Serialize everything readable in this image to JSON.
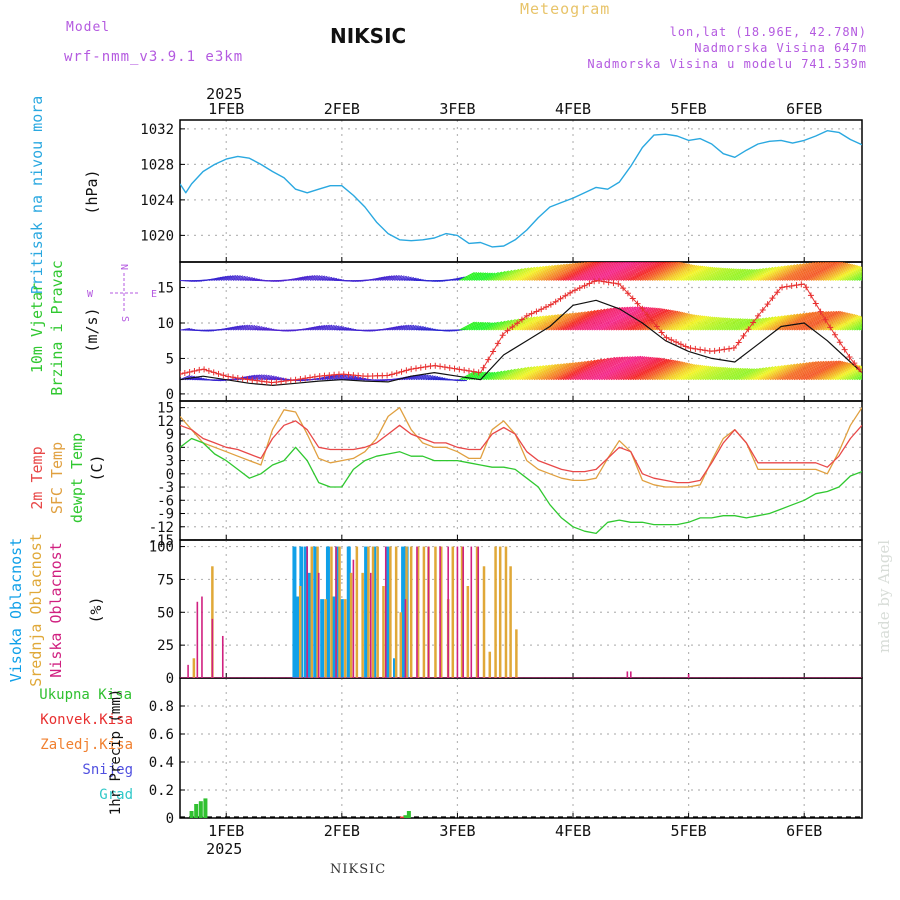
{
  "header": {
    "model_label": "Model",
    "model_name": "wrf-nmm_v3.9.1  e3km",
    "station": "NIKSIC",
    "product": "Meteogram",
    "coords": "lon,lat (18.96E, 42.78N)",
    "elevation": "Nadmorska Visina 647m",
    "model_elevation": "Nadmorska Visina u modelu 741.539m"
  },
  "footer": {
    "station": "NIKSIC",
    "credit": "made by Angel"
  },
  "colors": {
    "pressure": "#2aa8e0",
    "temp2m": "#e84848",
    "sfc": "#e0a040",
    "dew": "#30c830",
    "high": "#10a0e8",
    "mid": "#e0a838",
    "low": "#d02080",
    "rain": "#30c030",
    "conv": "#e83030",
    "frz": "#f08030",
    "snow": "#5050e0",
    "hail": "#30c8c8",
    "grid": "#b8b8b8",
    "gold": "#e8c46a",
    "violet": "#b45ae0"
  },
  "chart_data": [
    {
      "type": "line",
      "id": "pressure",
      "ylabel_lines": [
        "Pritisak na nivou mora",
        "(hPa)"
      ],
      "unit": "(hPa)",
      "title": "Pritisak na nivou mora",
      "x_range_days": [
        0.6,
        6.5
      ],
      "ylim": [
        1017,
        1033
      ],
      "yticks": [
        1020,
        1024,
        1028,
        1032
      ],
      "series": [
        {
          "name": "pressure",
          "x": [
            0.6,
            0.65,
            0.7,
            0.8,
            0.9,
            1.0,
            1.1,
            1.2,
            1.3,
            1.4,
            1.5,
            1.6,
            1.7,
            1.8,
            1.9,
            2.0,
            2.1,
            2.2,
            2.3,
            2.4,
            2.5,
            2.6,
            2.7,
            2.8,
            2.9,
            3.0,
            3.1,
            3.2,
            3.3,
            3.4,
            3.5,
            3.6,
            3.7,
            3.8,
            3.9,
            4.0,
            4.1,
            4.2,
            4.3,
            4.4,
            4.5,
            4.6,
            4.7,
            4.8,
            4.9,
            5.0,
            5.1,
            5.2,
            5.3,
            5.4,
            5.5,
            5.6,
            5.7,
            5.8,
            5.9,
            6.0,
            6.1,
            6.2,
            6.3,
            6.4,
            6.5
          ],
          "values": [
            1025.8,
            1024.8,
            1025.8,
            1027.2,
            1028.0,
            1028.6,
            1028.9,
            1028.7,
            1028.0,
            1027.2,
            1026.5,
            1025.2,
            1024.8,
            1025.2,
            1025.6,
            1025.6,
            1024.5,
            1023.2,
            1021.5,
            1020.2,
            1019.5,
            1019.4,
            1019.5,
            1019.7,
            1020.2,
            1020.0,
            1019.1,
            1019.2,
            1018.7,
            1018.8,
            1019.5,
            1020.6,
            1022.0,
            1023.2,
            1023.7,
            1024.2,
            1024.8,
            1025.4,
            1025.2,
            1026.0,
            1027.8,
            1029.9,
            1031.3,
            1031.4,
            1031.2,
            1030.7,
            1030.9,
            1030.3,
            1029.2,
            1028.8,
            1029.6,
            1030.3,
            1030.6,
            1030.7,
            1030.4,
            1030.7,
            1031.2,
            1031.8,
            1031.6,
            1030.8,
            1030.2
          ]
        }
      ]
    },
    {
      "type": "line",
      "id": "wind",
      "ylabel_lines": [
        "10m Vjetar",
        "Brzina i Pravac",
        "(m/s)"
      ],
      "compass": [
        "N",
        "W",
        "E",
        "S"
      ],
      "x_range_days": [
        0.6,
        6.5
      ],
      "ylim": [
        -1,
        18.6
      ],
      "yticks": [
        0,
        5,
        10,
        15
      ],
      "note": "three direction-stripe bands (vectors rendered at ~2, 9, 16 m/s) plus speed (black) and gust (red)",
      "series": [
        {
          "name": "speed",
          "x": [
            0.6,
            0.8,
            1.0,
            1.2,
            1.4,
            1.6,
            1.8,
            2.0,
            2.2,
            2.4,
            2.6,
            2.8,
            3.0,
            3.2,
            3.4,
            3.6,
            3.8,
            4.0,
            4.2,
            4.4,
            4.6,
            4.8,
            5.0,
            5.2,
            5.4,
            5.6,
            5.8,
            6.0,
            6.2,
            6.4,
            6.5
          ],
          "values": [
            2.0,
            2.5,
            2.0,
            1.5,
            1.2,
            1.5,
            1.8,
            2.0,
            1.8,
            1.7,
            2.5,
            3.0,
            2.5,
            2.0,
            5.5,
            7.5,
            9.5,
            12.5,
            13.2,
            12.0,
            10.0,
            7.5,
            6.0,
            5.0,
            4.5,
            7.0,
            9.5,
            10.0,
            7.5,
            4.5,
            3.0
          ]
        },
        {
          "name": "gust",
          "x": [
            0.6,
            0.8,
            1.0,
            1.2,
            1.4,
            1.6,
            1.8,
            2.0,
            2.2,
            2.4,
            2.6,
            2.8,
            3.0,
            3.2,
            3.4,
            3.6,
            3.8,
            4.0,
            4.2,
            4.4,
            4.6,
            4.8,
            5.0,
            5.2,
            5.4,
            5.6,
            5.8,
            6.0,
            6.2,
            6.4,
            6.5
          ],
          "values": [
            2.8,
            3.5,
            2.5,
            2.0,
            1.6,
            2.0,
            2.5,
            2.8,
            2.5,
            2.6,
            3.5,
            4.0,
            3.5,
            3.0,
            8.5,
            11.0,
            12.5,
            14.5,
            16.0,
            15.5,
            12.0,
            8.0,
            6.5,
            6.0,
            6.5,
            11.0,
            15.0,
            15.5,
            10.0,
            5.0,
            3.0
          ]
        }
      ]
    },
    {
      "type": "line",
      "id": "temperature",
      "ylabel_lines": [
        "2m Temp",
        "SFC Temp",
        "dewpt Temp",
        "(C)"
      ],
      "x_range_days": [
        0.6,
        6.5
      ],
      "ylim": [
        -15,
        16.5
      ],
      "yticks": [
        15,
        12,
        9,
        6,
        3,
        0,
        -3,
        -6,
        -9,
        -12,
        -15
      ],
      "series": [
        {
          "name": "2m Temp",
          "x": [
            0.6,
            0.7,
            0.8,
            0.9,
            1.0,
            1.1,
            1.2,
            1.3,
            1.4,
            1.5,
            1.6,
            1.7,
            1.8,
            1.9,
            2.0,
            2.1,
            2.2,
            2.3,
            2.4,
            2.5,
            2.6,
            2.7,
            2.8,
            2.9,
            3.0,
            3.1,
            3.2,
            3.3,
            3.4,
            3.5,
            3.6,
            3.7,
            3.8,
            3.9,
            4.0,
            4.1,
            4.2,
            4.3,
            4.4,
            4.5,
            4.6,
            4.7,
            4.8,
            4.9,
            5.0,
            5.1,
            5.2,
            5.3,
            5.4,
            5.5,
            5.6,
            5.7,
            5.8,
            5.9,
            6.0,
            6.1,
            6.2,
            6.3,
            6.4,
            6.5
          ],
          "values": [
            11,
            10,
            8,
            7,
            6,
            5.5,
            4.5,
            3.5,
            8,
            11,
            12,
            10,
            6,
            5.5,
            5.5,
            5.5,
            6,
            7,
            9,
            11,
            9,
            8,
            7,
            7,
            6,
            5.5,
            5.5,
            9,
            10.5,
            9,
            5,
            3,
            2,
            1,
            0.5,
            0.5,
            1,
            3.5,
            6,
            5,
            0,
            -1,
            -1.5,
            -2,
            -2,
            -1.5,
            2.5,
            7,
            10,
            7,
            2.5,
            2.5,
            2.5,
            2.5,
            2.5,
            2.5,
            1.5,
            4,
            8,
            11
          ]
        },
        {
          "name": "SFC Temp",
          "x": [
            0.6,
            0.7,
            0.8,
            0.9,
            1.0,
            1.1,
            1.2,
            1.3,
            1.4,
            1.5,
            1.6,
            1.7,
            1.8,
            1.9,
            2.0,
            2.1,
            2.2,
            2.3,
            2.4,
            2.5,
            2.6,
            2.7,
            2.8,
            2.9,
            3.0,
            3.1,
            3.2,
            3.3,
            3.4,
            3.5,
            3.6,
            3.7,
            3.8,
            3.9,
            4.0,
            4.1,
            4.2,
            4.3,
            4.4,
            4.5,
            4.6,
            4.7,
            4.8,
            4.9,
            5.0,
            5.1,
            5.2,
            5.3,
            5.4,
            5.5,
            5.6,
            5.7,
            5.8,
            5.9,
            6.0,
            6.1,
            6.2,
            6.3,
            6.4,
            6.5
          ],
          "values": [
            13,
            10,
            7,
            6,
            5,
            4,
            3,
            2,
            10,
            14.5,
            14,
            9,
            3.5,
            2.5,
            3,
            3.5,
            5,
            8,
            13,
            15,
            10,
            7,
            6,
            6,
            5,
            3.5,
            3.5,
            10,
            12,
            9,
            3,
            1,
            0,
            -1,
            -1.5,
            -1.5,
            -1,
            3.5,
            7.5,
            5,
            -1.5,
            -2.5,
            -3,
            -3,
            -3,
            -2.5,
            3,
            8,
            10,
            7,
            1,
            1,
            1,
            1,
            1,
            1,
            0,
            5,
            11,
            15
          ]
        },
        {
          "name": "dewpt Temp",
          "x": [
            0.6,
            0.7,
            0.8,
            0.9,
            1.0,
            1.1,
            1.2,
            1.3,
            1.4,
            1.5,
            1.6,
            1.7,
            1.8,
            1.9,
            2.0,
            2.1,
            2.2,
            2.3,
            2.4,
            2.5,
            2.6,
            2.7,
            2.8,
            2.9,
            3.0,
            3.1,
            3.2,
            3.3,
            3.4,
            3.5,
            3.6,
            3.7,
            3.8,
            3.9,
            4.0,
            4.1,
            4.2,
            4.3,
            4.4,
            4.5,
            4.6,
            4.7,
            4.8,
            4.9,
            5.0,
            5.1,
            5.2,
            5.3,
            5.4,
            5.5,
            5.6,
            5.7,
            5.8,
            5.9,
            6.0,
            6.1,
            6.2,
            6.3,
            6.4,
            6.5
          ],
          "values": [
            6,
            8,
            7,
            4.5,
            3,
            1,
            -1,
            0,
            2,
            3,
            6,
            3,
            -2,
            -3,
            -3,
            1,
            3,
            4,
            4.5,
            5,
            4,
            4,
            3,
            3,
            3,
            2.5,
            2,
            1.5,
            1.5,
            1,
            -1,
            -3,
            -7,
            -10,
            -12,
            -13,
            -13.5,
            -11,
            -10.5,
            -11,
            -11,
            -11.5,
            -11.5,
            -11.5,
            -11,
            -10,
            -10,
            -9.5,
            -9.5,
            -10,
            -9.5,
            -9,
            -8,
            -7,
            -6,
            -4.5,
            -4,
            -3,
            -0.5,
            0.5
          ]
        }
      ]
    },
    {
      "type": "bar",
      "id": "cloud",
      "ylabel_lines": [
        "Visoka Oblacnost",
        "Srednja Oblacnost",
        "Niska Oblacnost",
        "(%)"
      ],
      "x_range_days": [
        0.6,
        6.5
      ],
      "ylim": [
        0,
        105
      ],
      "yticks": [
        0,
        25,
        50,
        75,
        100
      ],
      "series": [
        {
          "name": "Visoka Oblacnost",
          "x": [
            1.59,
            1.62,
            1.65,
            1.69,
            1.72,
            1.77,
            1.83,
            1.88,
            1.93,
            1.96,
            2.0,
            2.06,
            2.21,
            2.28,
            2.4,
            2.46,
            2.53,
            2.56
          ],
          "values": [
            100,
            62,
            100,
            100,
            80,
            100,
            60,
            100,
            62,
            100,
            60,
            100,
            100,
            100,
            100,
            15,
            100,
            100
          ]
        },
        {
          "name": "Srednja Oblacnost",
          "x": [
            0.72,
            0.88,
            1.64,
            1.74,
            1.79,
            1.86,
            1.91,
            1.98,
            2.03,
            2.08,
            2.13,
            2.18,
            2.23,
            2.27,
            2.31,
            2.36,
            2.42,
            2.47,
            2.51,
            2.56,
            2.6,
            2.66,
            2.71,
            2.75,
            2.81,
            2.86,
            2.92,
            2.96,
            3.04,
            3.09,
            3.17,
            3.23,
            3.28,
            3.33,
            3.37,
            3.42,
            3.46,
            3.51
          ],
          "values": [
            15,
            85,
            70,
            100,
            100,
            60,
            100,
            100,
            60,
            80,
            100,
            80,
            100,
            100,
            100,
            70,
            100,
            100,
            50,
            100,
            100,
            100,
            100,
            100,
            100,
            100,
            60,
            100,
            100,
            70,
            100,
            85,
            20,
            100,
            100,
            100,
            85,
            37
          ]
        },
        {
          "name": "Niska Oblacnost",
          "x": [
            0.67,
            0.75,
            0.79,
            0.88,
            0.97,
            1.7,
            1.8,
            1.95,
            2.1,
            2.25,
            2.38,
            2.55,
            2.65,
            2.75,
            2.85,
            2.92,
            3.0,
            3.05,
            3.12,
            3.18,
            4.47,
            4.5,
            5.0
          ],
          "values": [
            10,
            58,
            62,
            45,
            32,
            100,
            80,
            100,
            90,
            80,
            100,
            60,
            100,
            100,
            100,
            100,
            100,
            100,
            100,
            100,
            5,
            5,
            3
          ]
        }
      ]
    },
    {
      "type": "bar",
      "id": "precip",
      "ylabel_lines": [
        "Ukupna Kisa",
        "Konvek.Kisa",
        "Zaledj.Kisa",
        "Snijeg",
        "Grad",
        "1hr Precip (mm)"
      ],
      "x_range_days": [
        0.6,
        6.5
      ],
      "ylim": [
        0,
        1.0
      ],
      "yticks": [
        0,
        0.2,
        0.4,
        0.6,
        0.8
      ],
      "ytick_labels": [
        "0",
        "0.2",
        "0.4",
        "0.6",
        "0.8"
      ],
      "series": [
        {
          "name": "Ukupna Kisa",
          "x": [
            0.7,
            0.74,
            0.78,
            0.82,
            2.55,
            2.58
          ],
          "values": [
            0.05,
            0.1,
            0.12,
            0.14,
            0.02,
            0.05
          ]
        },
        {
          "name": "Konvek.Kisa",
          "x": [
            2.52
          ],
          "values": [
            0.01
          ]
        }
      ]
    }
  ],
  "axes": {
    "top_year": "2025",
    "bottom_year": "2025",
    "day_labels": [
      "1FEB",
      "2FEB",
      "3FEB",
      "4FEB",
      "5FEB",
      "6FEB"
    ],
    "day_positions": [
      1,
      2,
      3,
      4,
      5,
      6
    ]
  }
}
